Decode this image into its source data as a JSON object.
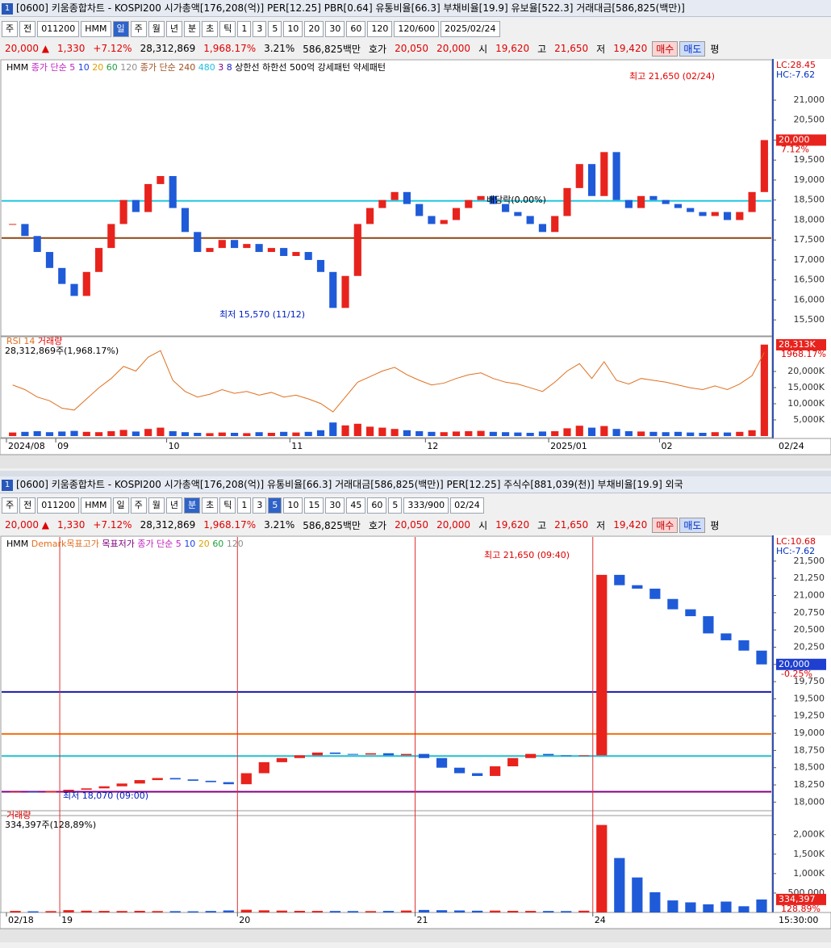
{
  "windows": [
    {
      "title": "[0600] 키움종합차트 - KOSPI200 시가총액[176,208(억)] PER[12.25] PBR[0.64] 유통비율[66.3] 부채비율[19.9] 유보율[522.3] 거래대금[586,825(백만)]",
      "toolbar": [
        {
          "text": "주"
        },
        {
          "text": "전"
        },
        {
          "text": "011200"
        },
        {
          "text": "HMM"
        },
        {
          "text": "일",
          "active": true
        },
        {
          "text": "주"
        },
        {
          "text": "월"
        },
        {
          "text": "년"
        },
        {
          "text": "분"
        },
        {
          "text": "초"
        },
        {
          "text": "틱"
        },
        {
          "text": "1"
        },
        {
          "text": "3"
        },
        {
          "text": "5"
        },
        {
          "text": "10"
        },
        {
          "text": "20"
        },
        {
          "text": "30"
        },
        {
          "text": "60"
        },
        {
          "text": "120"
        },
        {
          "text": "120/600"
        },
        {
          "text": "2025/02/24"
        }
      ],
      "info": [
        {
          "text": "20,000 ▲",
          "color": "#e00000"
        },
        {
          "text": "1,330",
          "color": "#e00000"
        },
        {
          "text": "+7.12%",
          "color": "#e00000"
        },
        {
          "text": "28,312,869"
        },
        {
          "text": "1,968.17%",
          "color": "#e00000"
        },
        {
          "text": "3.21%"
        },
        {
          "text": "586,825백만"
        },
        {
          "text": "호가"
        },
        {
          "text": "20,050",
          "color": "#e00000"
        },
        {
          "text": "20,000",
          "color": "#e00000"
        },
        {
          "text": "시"
        },
        {
          "text": "19,620",
          "color": "#e00000"
        },
        {
          "text": "고"
        },
        {
          "text": "21,650",
          "color": "#e00000"
        },
        {
          "text": "저"
        },
        {
          "text": "19,420",
          "color": "#e00000"
        },
        {
          "text": "매수",
          "color": "#c00000",
          "bg": "#fbd3d3"
        },
        {
          "text": "매도",
          "color": "#0030c0",
          "bg": "#cfdcf8"
        },
        {
          "text": "평"
        }
      ]
    },
    {
      "title": "[0600] 키움종합차트 - KOSPI200 시가총액[176,208(억)] 유통비율[66.3] 거래대금[586,825(백만)] PER[12.25] 주식수[881,039(천)] 부채비율[19.9] 외국",
      "toolbar": [
        {
          "text": "주"
        },
        {
          "text": "전"
        },
        {
          "text": "011200"
        },
        {
          "text": "HMM"
        },
        {
          "text": "일"
        },
        {
          "text": "주"
        },
        {
          "text": "월"
        },
        {
          "text": "년"
        },
        {
          "text": "분",
          "active": true
        },
        {
          "text": "초"
        },
        {
          "text": "틱"
        },
        {
          "text": "1"
        },
        {
          "text": "3"
        },
        {
          "text": "5",
          "active": true
        },
        {
          "text": "10"
        },
        {
          "text": "15"
        },
        {
          "text": "30"
        },
        {
          "text": "45"
        },
        {
          "text": "60"
        },
        {
          "text": "5"
        },
        {
          "text": "333/900"
        },
        {
          "text": "02/24"
        }
      ],
      "info": [
        {
          "text": "20,000 ▲",
          "color": "#e00000"
        },
        {
          "text": "1,330",
          "color": "#e00000"
        },
        {
          "text": "+7.12%",
          "color": "#e00000"
        },
        {
          "text": "28,312,869"
        },
        {
          "text": "1,968.17%",
          "color": "#e00000"
        },
        {
          "text": "3.21%"
        },
        {
          "text": "586,825백만"
        },
        {
          "text": "호가"
        },
        {
          "text": "20,050",
          "color": "#e00000"
        },
        {
          "text": "20,000",
          "color": "#e00000"
        },
        {
          "text": "시"
        },
        {
          "text": "19,620",
          "color": "#e00000"
        },
        {
          "text": "고"
        },
        {
          "text": "21,650",
          "color": "#e00000"
        },
        {
          "text": "저"
        },
        {
          "text": "19,420",
          "color": "#e00000"
        },
        {
          "text": "매수",
          "color": "#c00000",
          "bg": "#fbd3d3"
        },
        {
          "text": "매도",
          "color": "#0030c0",
          "bg": "#cfdcf8"
        },
        {
          "text": "평"
        }
      ]
    }
  ],
  "chart_data": [
    {
      "type": "candlestick",
      "up_color": "#e8231d",
      "down_color": "#1f5bd8",
      "price_box_color": "#e8231d",
      "legend": [
        {
          "text": "HMM",
          "color": "#000000"
        },
        {
          "text": "종가 단순 5",
          "color": "#c020c0"
        },
        {
          "text": "10",
          "color": "#2040e0"
        },
        {
          "text": "20",
          "color": "#e0a000"
        },
        {
          "text": "60",
          "color": "#20a040"
        },
        {
          "text": "120",
          "color": "#909090"
        },
        {
          "text": "종가 단순 240",
          "color": "#a05020"
        },
        {
          "text": "480",
          "color": "#20c0e0"
        },
        {
          "text": "3",
          "color": "#800080"
        },
        {
          "text": "8",
          "color": "#2020c0"
        },
        {
          "text": "상한선",
          "color": "#000000"
        },
        {
          "text": "하한선",
          "color": "#000000"
        },
        {
          "text": "500억 강세패턴",
          "color": "#000000"
        },
        {
          "text": "약세패턴",
          "color": "#000000"
        }
      ],
      "right_labels": {
        "lc": "LC:28.45",
        "hc": "HC:-7.62",
        "price": "20,000",
        "change": "7.12%",
        "volume": "28,313K",
        "volume_change": "1968.17%"
      },
      "annotations": [
        {
          "text": "최고 21,650 (02/24)",
          "color": "#e00000"
        },
        {
          "text": "최저 15,570 (11/12)",
          "color": "#0020c0"
        },
        {
          "text": "배당락(0.00%)",
          "color": "#000000"
        }
      ],
      "categories": [
        "2024/08",
        null,
        null,
        null,
        "09",
        null,
        null,
        null,
        null,
        null,
        null,
        null,
        null,
        "10",
        null,
        null,
        null,
        null,
        null,
        null,
        null,
        null,
        null,
        "11",
        null,
        null,
        null,
        null,
        null,
        null,
        null,
        null,
        null,
        null,
        "12",
        null,
        null,
        null,
        null,
        null,
        null,
        null,
        null,
        null,
        "2025/01",
        null,
        null,
        null,
        null,
        null,
        null,
        null,
        null,
        "02",
        null,
        null,
        null,
        null,
        null,
        null,
        null,
        null
      ],
      "axis_end_label": "02/24",
      "values": [
        17900,
        17600,
        17200,
        16800,
        16400,
        16100,
        16700,
        17300,
        17900,
        18500,
        18200,
        18900,
        19100,
        18300,
        17700,
        17200,
        17300,
        17500,
        17300,
        17400,
        17200,
        17300,
        17100,
        17200,
        17000,
        16700,
        15800,
        16600,
        17900,
        18300,
        18500,
        18700,
        18400,
        18100,
        17900,
        18000,
        18300,
        18500,
        18600,
        18400,
        18200,
        18100,
        17900,
        17700,
        18100,
        18800,
        19400,
        18600,
        19700,
        18500,
        18300,
        18600,
        18500,
        18400,
        18300,
        18200,
        18100,
        18200,
        18000,
        18200,
        18700,
        20000
      ],
      "ylim": [
        15160,
        21990
      ],
      "yticks": [
        {
          "value": 15500,
          "label": "15,500"
        },
        {
          "value": 16000,
          "label": "16,000"
        },
        {
          "value": 16500,
          "label": "16,500"
        },
        {
          "value": 17000,
          "label": "17,000"
        },
        {
          "value": 17500,
          "label": "17,500"
        },
        {
          "value": 18000,
          "label": "18,000"
        },
        {
          "value": 18500,
          "label": "18,500"
        },
        {
          "value": 19000,
          "label": "19,000"
        },
        {
          "value": 19500,
          "label": "19,500"
        },
        {
          "value": 20000,
          "label": "20,000"
        },
        {
          "value": 20500,
          "label": "20,500"
        },
        {
          "value": 21000,
          "label": "21,000"
        }
      ],
      "levels": [
        {
          "value": 18480,
          "color": "#20c8e0"
        },
        {
          "value": 17550,
          "color": "#8b4513"
        }
      ],
      "day_lines": false,
      "volume": {
        "legend": [
          {
            "text": "RSI 14",
            "color": "#e07020"
          },
          {
            "text": "거래량",
            "color": "#e00000"
          }
        ],
        "summary": "28,312,869주(1,968.17%)",
        "values": [
          1100,
          1300,
          1500,
          1200,
          1400,
          1600,
          1300,
          1200,
          1500,
          1900,
          1400,
          2200,
          2600,
          1500,
          1200,
          1000,
          900,
          1100,
          1000,
          900,
          1200,
          1000,
          1300,
          1100,
          1300,
          1800,
          4200,
          3300,
          3800,
          2900,
          2600,
          2200,
          1800,
          1500,
          1300,
          1200,
          1400,
          1500,
          1600,
          1300,
          1200,
          1100,
          1000,
          1400,
          1500,
          2400,
          3200,
          2600,
          3100,
          2200,
          1500,
          1400,
          1300,
          1200,
          1300,
          1100,
          1000,
          1200,
          1100,
          1300,
          1800,
          28313
        ],
        "ylim": [
          0,
          28750
        ],
        "yticks": [
          {
            "value": 5000,
            "label": "5,000K"
          },
          {
            "value": 10000,
            "label": "10,000K"
          },
          {
            "value": 15000,
            "label": "15,000K"
          },
          {
            "value": 20000,
            "label": "20,000K"
          }
        ]
      },
      "rsi": {
        "color": "#e07020",
        "ylim": [
          0,
          100
        ],
        "values": [
          55,
          50,
          42,
          38,
          30,
          28,
          40,
          52,
          62,
          75,
          70,
          85,
          92,
          60,
          48,
          42,
          45,
          50,
          46,
          48,
          44,
          47,
          42,
          44,
          40,
          35,
          26,
          42,
          58,
          64,
          70,
          74,
          66,
          60,
          55,
          57,
          62,
          66,
          68,
          62,
          58,
          56,
          52,
          48,
          58,
          70,
          78,
          62,
          80,
          60,
          56,
          62,
          60,
          58,
          55,
          52,
          50,
          54,
          50,
          56,
          65,
          90
        ]
      }
    },
    {
      "type": "candlestick",
      "up_color": "#e8231d",
      "down_color": "#1f5bd8",
      "price_box_color": "#1f3fd0",
      "legend": [
        {
          "text": "HMM",
          "color": "#000000"
        },
        {
          "text": "Demark목표고가",
          "color": "#e07020"
        },
        {
          "text": "목표저가",
          "color": "#800080"
        },
        {
          "text": "종가 단순 5",
          "color": "#c020c0"
        },
        {
          "text": "10",
          "color": "#2040e0"
        },
        {
          "text": "20",
          "color": "#e0a000"
        },
        {
          "text": "60",
          "color": "#20a040"
        },
        {
          "text": "120",
          "color": "#909090"
        }
      ],
      "right_labels": {
        "lc": "LC:10.68",
        "hc": "HC:-7.62",
        "price": "20,000",
        "change": "-0.25%",
        "volume": "334,397",
        "volume_change": "128.89%"
      },
      "annotations": [
        {
          "text": "최고 21,650 (09:40)",
          "color": "#e00000"
        },
        {
          "text": "최저 18,070 (09:00)",
          "color": "#0020c0"
        }
      ],
      "categories": [
        "02/18",
        null,
        null,
        "19",
        null,
        null,
        null,
        null,
        null,
        null,
        null,
        null,
        null,
        "20",
        null,
        null,
        null,
        null,
        null,
        null,
        null,
        null,
        null,
        "21",
        null,
        null,
        null,
        null,
        null,
        null,
        null,
        null,
        null,
        "24",
        null,
        null,
        null,
        null,
        null,
        null,
        null,
        null,
        null
      ],
      "axis_end_label": "15:30:00",
      "values": [
        18150,
        18140,
        18160,
        18180,
        18200,
        18230,
        18270,
        18320,
        18350,
        18330,
        18310,
        18290,
        18260,
        18420,
        18580,
        18640,
        18680,
        18720,
        18700,
        18690,
        18710,
        18680,
        18700,
        18640,
        18500,
        18420,
        18380,
        18520,
        18640,
        18700,
        18680,
        18670,
        18680,
        21300,
        21150,
        21100,
        20950,
        20800,
        20700,
        20450,
        20350,
        20200,
        20000
      ],
      "ylim": [
        17840,
        21850
      ],
      "yticks": [
        {
          "value": 18000,
          "label": "18,000"
        },
        {
          "value": 18250,
          "label": "18,250"
        },
        {
          "value": 18500,
          "label": "18,500"
        },
        {
          "value": 18750,
          "label": "18,750"
        },
        {
          "value": 19000,
          "label": "19,000"
        },
        {
          "value": 19250,
          "label": "19,250"
        },
        {
          "value": 19500,
          "label": "19,500"
        },
        {
          "value": 19750,
          "label": "19,750"
        },
        {
          "value": 20000,
          "label": "20,000"
        },
        {
          "value": 20250,
          "label": "20,250"
        },
        {
          "value": 20500,
          "label": "20,500"
        },
        {
          "value": 20750,
          "label": "20,750"
        },
        {
          "value": 21000,
          "label": "21,000"
        },
        {
          "value": 21250,
          "label": "21,250"
        },
        {
          "value": 21500,
          "label": "21,500"
        }
      ],
      "levels": [
        {
          "value": 19600,
          "color": "#1a1aa8"
        },
        {
          "value": 18990,
          "color": "#f07010"
        },
        {
          "value": 18670,
          "color": "#20c0d0"
        },
        {
          "value": 18150,
          "color": "#800080"
        }
      ],
      "day_lines": true,
      "volume": {
        "legend": [
          {
            "text": "거래량",
            "color": "#e00000"
          }
        ],
        "summary": "334,397주(128,89%)",
        "values": [
          40000,
          30000,
          35000,
          60000,
          45000,
          40000,
          38000,
          42000,
          36000,
          34000,
          30000,
          38000,
          52000,
          70000,
          55000,
          48000,
          42000,
          40000,
          38000,
          36000,
          35000,
          40000,
          50000,
          65000,
          58000,
          52000,
          45000,
          48000,
          42000,
          40000,
          38000,
          36000,
          45000,
          2250000,
          1400000,
          900000,
          520000,
          310000,
          260000,
          210000,
          280000,
          160000,
          334397
        ],
        "ylim": [
          0,
          2450000
        ],
        "yticks": [
          {
            "value": 500000,
            "label": "500,000"
          },
          {
            "value": 1000000,
            "label": "1,000K"
          },
          {
            "value": 1500000,
            "label": "1,500K"
          },
          {
            "value": 2000000,
            "label": "2,000K"
          }
        ]
      }
    }
  ]
}
